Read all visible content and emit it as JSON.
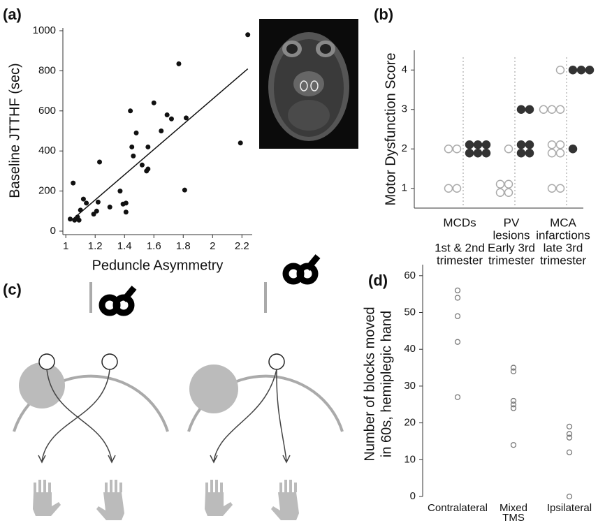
{
  "chart_data": [
    {
      "type": "scatter",
      "label": "(a)",
      "xlabel": "Peduncle Asymmetry",
      "ylabel": "Baseline JTTHF (sec)",
      "x": [
        1.05,
        1.03,
        1.06,
        1.08,
        1.1,
        1.12,
        1.14,
        1.09,
        1.19,
        1.21,
        1.22,
        1.23,
        1.3,
        1.37,
        1.39,
        1.41,
        1.41,
        1.44,
        1.45,
        1.46,
        1.48,
        1.52,
        1.55,
        1.56,
        1.56,
        1.6,
        1.65,
        1.69,
        1.72,
        1.77,
        1.81,
        1.82,
        2.19,
        2.24
      ],
      "y": [
        240,
        60,
        55,
        70,
        105,
        160,
        140,
        55,
        85,
        100,
        145,
        345,
        120,
        200,
        135,
        140,
        95,
        600,
        420,
        375,
        490,
        330,
        300,
        310,
        420,
        640,
        500,
        580,
        560,
        835,
        205,
        565,
        440,
        980
      ],
      "color": "#111111",
      "trendline": {
        "x": [
          1.04,
          2.24
        ],
        "y": [
          55,
          810
        ]
      },
      "xlim": [
        0.98,
        2.27
      ],
      "xticks": [
        1,
        1.2,
        1.4,
        1.6,
        1.8,
        2,
        2.2
      ],
      "ylim": [
        0,
        1000
      ],
      "yticks": [
        0,
        200,
        400,
        600,
        800,
        1000
      ]
    },
    {
      "type": "dot",
      "label": "(b)",
      "ylabel": "Motor Dysfunction Score",
      "categories": [
        [
          "MCDs"
        ],
        [
          "PV",
          "lesions"
        ],
        [
          "MCA",
          "infarctions"
        ]
      ],
      "sublabels": [
        [
          "1st & 2nd",
          "trimester"
        ],
        [
          "Early 3rd",
          "trimester"
        ],
        [
          "late 3rd",
          "trimester"
        ]
      ],
      "series": [
        {
          "color": "#ffffff",
          "values": [
            [
              2,
              2,
              0,
              0
            ],
            [
              4,
              1,
              0,
              0
            ],
            [
              2,
              4,
              3,
              1
            ]
          ]
        },
        {
          "color": "#333333",
          "values": [
            [
              0,
              6,
              0,
              0
            ],
            [
              0,
              4,
              2,
              0
            ],
            [
              0,
              1,
              0,
              3
            ]
          ]
        }
      ],
      "ylim": [
        0.5,
        4.5
      ],
      "yticks": [
        1,
        2,
        3,
        4
      ]
    },
    {
      "type": "strip",
      "label": "(d)",
      "ylabel": [
        "Number of blocks moved",
        "in 60s, hemiplegic hand"
      ],
      "categories": [
        [
          "Contralateral"
        ],
        [
          "Mixed",
          "TMS"
        ],
        [
          "Ipsilateral"
        ]
      ],
      "values": [
        [
          56,
          54,
          49,
          42,
          27
        ],
        [
          35,
          34,
          26,
          25,
          24,
          14
        ],
        [
          19,
          17,
          16,
          12,
          0
        ]
      ],
      "color": "#777777",
      "ylim": [
        0,
        63
      ],
      "yticks": [
        0,
        10,
        20,
        30,
        40,
        50,
        60
      ]
    }
  ],
  "diagram": {
    "label": "(c)"
  }
}
